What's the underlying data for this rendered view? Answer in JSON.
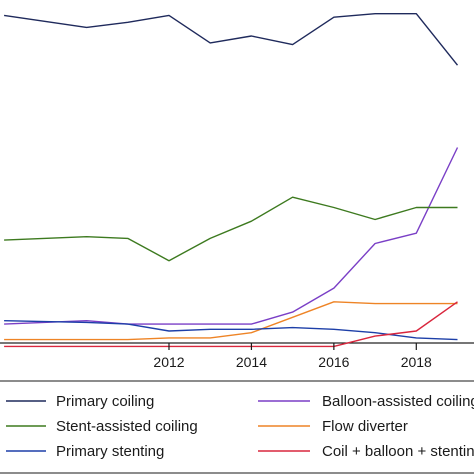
{
  "chart_data": {
    "type": "line",
    "title": "",
    "xlabel": "",
    "ylabel": "",
    "xlim": [
      2007.9,
      2019.4
    ],
    "ylim": [
      0,
      100
    ],
    "x_ticks": [
      {
        "value": 2012,
        "label": "2012"
      },
      {
        "value": 2014,
        "label": "2014"
      },
      {
        "value": 2016,
        "label": "2016"
      },
      {
        "value": 2018,
        "label": "2018"
      }
    ],
    "legend_position": "bottom",
    "series": [
      {
        "name": "Primary coiling",
        "color": "#1f2a5c",
        "x": [
          2008,
          2010,
          2011,
          2012,
          2013,
          2014,
          2015,
          2016,
          2017,
          2018,
          2019
        ],
        "y": [
          95.5,
          92.0,
          93.5,
          95.5,
          87.5,
          89.5,
          87.0,
          95.0,
          96.0,
          96.0,
          81.0
        ]
      },
      {
        "name": "Balloon-assisted coiling",
        "color": "#7a3fc6",
        "x": [
          2008,
          2010,
          2011,
          2012,
          2013,
          2014,
          2015,
          2016,
          2017,
          2018,
          2019
        ],
        "y": [
          5.5,
          6.5,
          5.5,
          5.5,
          5.5,
          5.5,
          9.0,
          16.0,
          29.0,
          32.0,
          57.0
        ]
      },
      {
        "name": "Stent-assisted coiling",
        "color": "#3d7a1f",
        "x": [
          2008,
          2010,
          2011,
          2012,
          2013,
          2014,
          2015,
          2016,
          2017,
          2018,
          2019
        ],
        "y": [
          30.0,
          31.0,
          30.5,
          24.0,
          30.5,
          35.5,
          42.5,
          39.5,
          36.0,
          39.5,
          39.5
        ]
      },
      {
        "name": "Flow diverter",
        "color": "#ee8426",
        "x": [
          2008,
          2010,
          2011,
          2012,
          2013,
          2014,
          2015,
          2016,
          2017,
          2018,
          2019
        ],
        "y": [
          1.0,
          1.0,
          1.0,
          1.5,
          1.5,
          3.0,
          7.5,
          12.0,
          11.5,
          11.5,
          11.5
        ]
      },
      {
        "name": "Primary stenting",
        "color": "#1d3fa8",
        "x": [
          2008,
          2010,
          2011,
          2012,
          2013,
          2014,
          2015,
          2016,
          2017,
          2018,
          2019
        ],
        "y": [
          6.5,
          6.0,
          5.5,
          3.5,
          4.0,
          4.0,
          4.5,
          4.0,
          3.0,
          1.5,
          1.0
        ]
      },
      {
        "name": "Coil + balloon + stenting",
        "color": "#d9263d",
        "x": [
          2008,
          2010,
          2011,
          2012,
          2013,
          2014,
          2015,
          2016,
          2017,
          2018,
          2019
        ],
        "y": [
          -1.0,
          -1.0,
          -1.0,
          -1.0,
          -1.0,
          -1.0,
          -1.0,
          -1.0,
          2.0,
          3.5,
          12.0
        ]
      }
    ]
  }
}
